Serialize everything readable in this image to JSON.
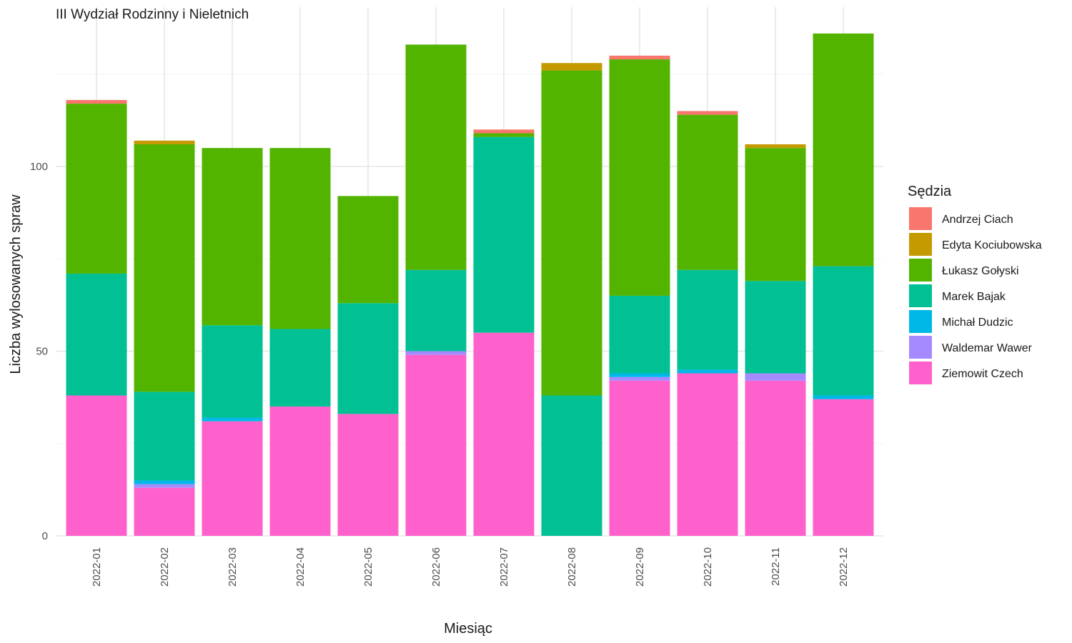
{
  "chart_data": {
    "type": "bar",
    "stacked": true,
    "title": "III Wydział Rodzinny i Nieletnich",
    "xlabel": "Miesiąc",
    "ylabel": "Liczba wylosowanych spraw",
    "ylim": [
      0,
      138
    ],
    "yticks": [
      0,
      50,
      100
    ],
    "grid": true,
    "legend": {
      "title": "Sędzia",
      "position": "right"
    },
    "categories": [
      "2022-01",
      "2022-02",
      "2022-03",
      "2022-04",
      "2022-05",
      "2022-06",
      "2022-07",
      "2022-08",
      "2022-09",
      "2022-10",
      "2022-11",
      "2022-12"
    ],
    "series": [
      {
        "name": "Ziemowit Czech",
        "color": "#FF61CC",
        "values": [
          38,
          13,
          31,
          35,
          33,
          49,
          55,
          0,
          42,
          44,
          42,
          37
        ]
      },
      {
        "name": "Waldemar Wawer",
        "color": "#A58AFF",
        "values": [
          0,
          1,
          0,
          0,
          0,
          1,
          0,
          0,
          1,
          0,
          2,
          0
        ]
      },
      {
        "name": "Michał Dudzic",
        "color": "#00B8E7",
        "values": [
          0,
          1,
          1,
          0,
          0,
          0,
          0,
          0,
          1,
          1,
          0,
          1
        ]
      },
      {
        "name": "Marek Bajak",
        "color": "#00C094",
        "values": [
          33,
          24,
          25,
          21,
          30,
          22,
          53,
          38,
          21,
          27,
          25,
          35
        ]
      },
      {
        "name": "Łukasz Gołyski",
        "color": "#53B400",
        "values": [
          46,
          67,
          48,
          49,
          29,
          61,
          1,
          88,
          64,
          42,
          36,
          63
        ]
      },
      {
        "name": "Edyta Kociubowska",
        "color": "#C49A00",
        "values": [
          0,
          1,
          0,
          0,
          0,
          0,
          0,
          2,
          0,
          0,
          1,
          0
        ]
      },
      {
        "name": "Andrzej Ciach",
        "color": "#F8766D",
        "values": [
          1,
          0,
          0,
          0,
          0,
          0,
          1,
          0,
          1,
          1,
          0,
          0
        ]
      }
    ],
    "legend_order": [
      "Andrzej Ciach",
      "Edyta Kociubowska",
      "Łukasz Gołyski",
      "Marek Bajak",
      "Michał Dudzic",
      "Waldemar Wawer",
      "Ziemowit Czech"
    ]
  }
}
